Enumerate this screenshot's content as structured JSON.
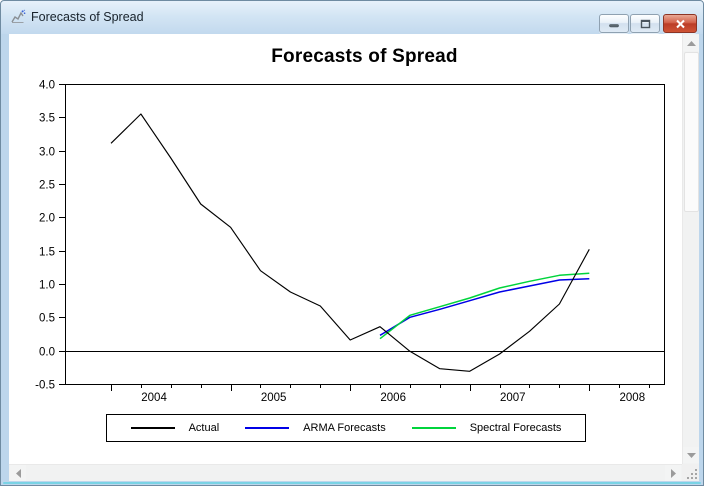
{
  "window": {
    "title": "Forecasts of Spread",
    "controls": {
      "minimize": "minimize",
      "maximize": "maximize",
      "close": "close"
    }
  },
  "chart": {
    "title": "Forecasts of Spread",
    "y_axis": {
      "ticks": [
        "4.0",
        "3.5",
        "3.0",
        "2.5",
        "2.0",
        "1.5",
        "1.0",
        "0.5",
        "0.0",
        "-0.5"
      ]
    },
    "x_axis": {
      "labels": [
        "2004",
        "2005",
        "2006",
        "2007",
        "2008"
      ]
    },
    "legend": [
      {
        "label": "Actual",
        "color": "#000000"
      },
      {
        "label": "ARMA Forecasts",
        "color": "#0000e6"
      },
      {
        "label": "Spectral Forecasts",
        "color": "#00d43c"
      }
    ]
  },
  "chart_data": {
    "type": "line",
    "title": "Forecasts of Spread",
    "xlabel": "",
    "ylabel": "",
    "xlim": [
      2003.615,
      2008.625
    ],
    "ylim": [
      -0.5,
      4.0
    ],
    "y_ticks": [
      4.0,
      3.5,
      3.0,
      2.5,
      2.0,
      1.5,
      1.0,
      0.5,
      0.0,
      -0.5
    ],
    "x_tick_years": [
      2004,
      2005,
      2006,
      2007,
      2008
    ],
    "x_minor_tick_step_years": 0.25,
    "grid": false,
    "zero_line": true,
    "legend_position": "bottom",
    "frequency": "quarterly",
    "series": [
      {
        "name": "Actual",
        "color": "#000000",
        "x": [
          2004.0,
          2004.25,
          2004.5,
          2004.75,
          2005.0,
          2005.25,
          2005.5,
          2005.75,
          2006.0,
          2006.25,
          2006.5,
          2006.75,
          2007.0,
          2007.25,
          2007.5,
          2007.75,
          2008.0
        ],
        "values": [
          3.11,
          3.55,
          2.89,
          2.2,
          1.85,
          1.2,
          0.88,
          0.67,
          0.16,
          0.36,
          -0.01,
          -0.27,
          -0.31,
          -0.05,
          0.29,
          0.7,
          1.52
        ]
      },
      {
        "name": "ARMA Forecasts",
        "color": "#0000e6",
        "x": [
          2006.25,
          2006.5,
          2006.75,
          2007.0,
          2007.25,
          2007.5,
          2007.75,
          2008.0
        ],
        "values": [
          0.23,
          0.5,
          0.62,
          0.75,
          0.88,
          0.97,
          1.06,
          1.08
        ]
      },
      {
        "name": "Spectral Forecasts",
        "color": "#00d43c",
        "x": [
          2006.25,
          2006.5,
          2006.75,
          2007.0,
          2007.25,
          2007.5,
          2007.75,
          2008.0
        ],
        "values": [
          0.18,
          0.53,
          0.66,
          0.79,
          0.94,
          1.04,
          1.13,
          1.16
        ]
      }
    ]
  }
}
